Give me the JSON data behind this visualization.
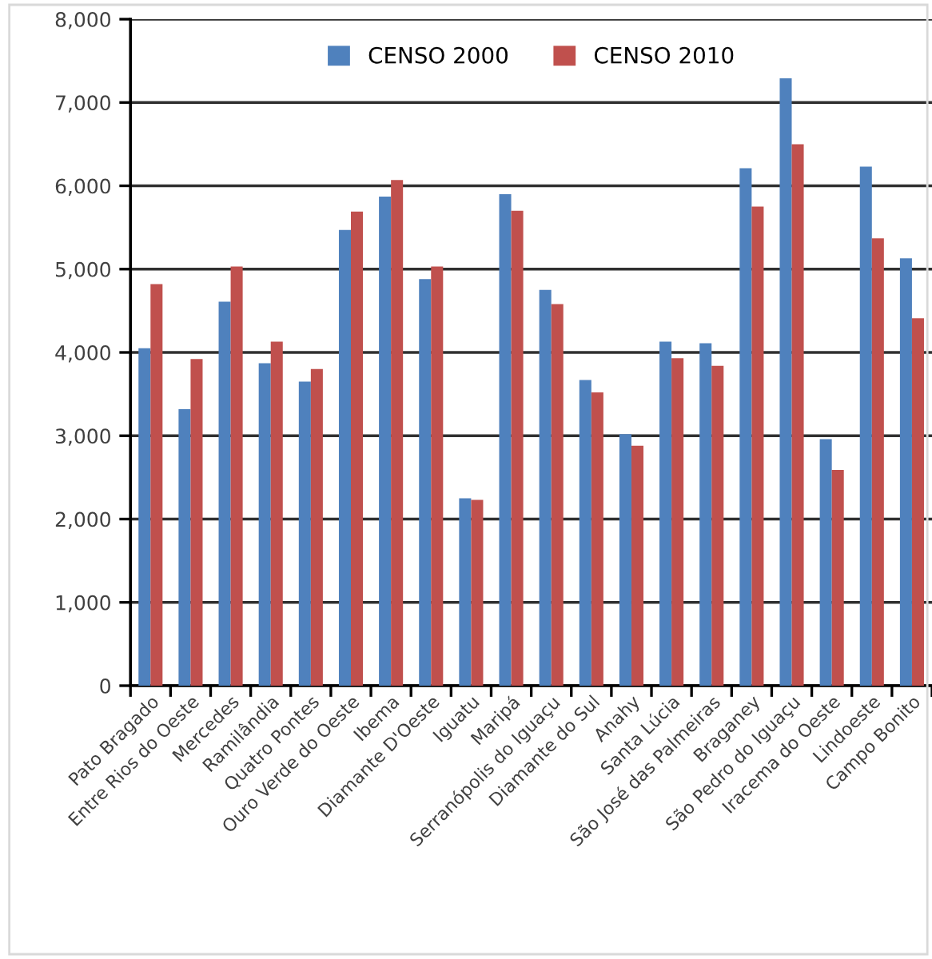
{
  "chart_data": {
    "type": "bar",
    "categories": [
      "Pato Bragado",
      "Entre Rios do Oeste",
      "Mercedes",
      "Ramilândia",
      "Quatro Pontes",
      "Ouro Verde do Oeste",
      "Ibema",
      "Diamante D'Oeste",
      "Iguatu",
      "Maripá",
      "Serranópolis do Iguaçu",
      "Diamante do Sul",
      "Anahy",
      "Santa Lúcia",
      "São José das Palmeiras",
      "Braganey",
      "São Pedro do Iguaçu",
      "Iracema do Oeste",
      "Lindoeste",
      "Campo Bonito"
    ],
    "series": [
      {
        "name": "CENSO 2000",
        "color": "#4f81bd",
        "values": [
          4050,
          3320,
          4610,
          3870,
          3650,
          5470,
          5870,
          4880,
          2250,
          5900,
          4750,
          3670,
          3020,
          4130,
          4110,
          6210,
          7290,
          2960,
          6230,
          5130
        ]
      },
      {
        "name": "CENSO 2010",
        "color": "#c0504d",
        "values": [
          4820,
          3920,
          5030,
          4130,
          3800,
          5690,
          6070,
          5030,
          2230,
          5700,
          4580,
          3520,
          2880,
          3930,
          3840,
          5750,
          6500,
          2590,
          5370,
          4410
        ]
      }
    ],
    "ylim": [
      0,
      8000
    ],
    "yticks": [
      {
        "value": 0,
        "label": "0"
      },
      {
        "value": 1000,
        "label": "1,000"
      },
      {
        "value": 2000,
        "label": "2,000"
      },
      {
        "value": 3000,
        "label": "3,000"
      },
      {
        "value": 4000,
        "label": "4,000"
      },
      {
        "value": 5000,
        "label": "5,000"
      },
      {
        "value": 6000,
        "label": "6,000"
      },
      {
        "value": 7000,
        "label": "7,000"
      },
      {
        "value": 8000,
        "label": "8,000"
      }
    ],
    "grid": "y",
    "legend": "top"
  }
}
